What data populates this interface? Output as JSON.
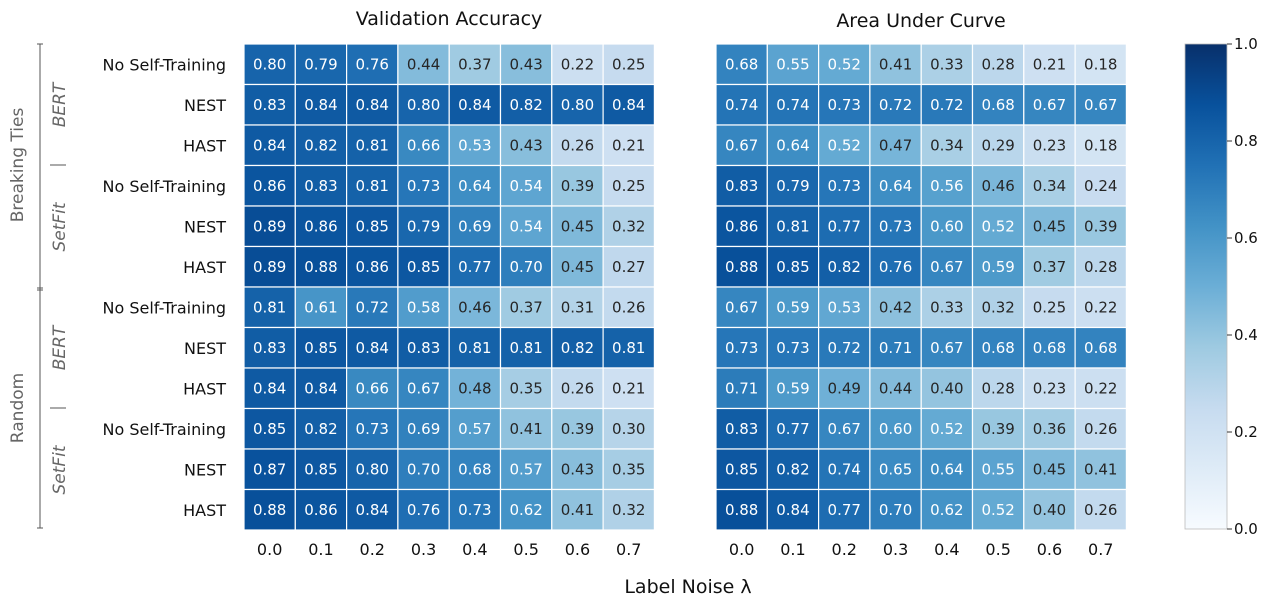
{
  "chart_data": [
    {
      "type": "heatmap",
      "title": "Validation Accuracy",
      "columns": [
        "0.0",
        "0.1",
        "0.2",
        "0.3",
        "0.4",
        "0.5",
        "0.6",
        "0.7"
      ],
      "rows": [
        "No Self-Training",
        "NEST",
        "HAST",
        "No Self-Training",
        "NEST",
        "HAST",
        "No Self-Training",
        "NEST",
        "HAST",
        "No Self-Training",
        "NEST",
        "HAST"
      ],
      "values": [
        [
          0.8,
          0.79,
          0.76,
          0.44,
          0.37,
          0.43,
          0.22,
          0.25
        ],
        [
          0.83,
          0.84,
          0.84,
          0.8,
          0.84,
          0.82,
          0.8,
          0.84
        ],
        [
          0.84,
          0.82,
          0.81,
          0.66,
          0.53,
          0.43,
          0.26,
          0.21
        ],
        [
          0.86,
          0.83,
          0.81,
          0.73,
          0.64,
          0.54,
          0.39,
          0.25
        ],
        [
          0.89,
          0.86,
          0.85,
          0.79,
          0.69,
          0.54,
          0.45,
          0.32
        ],
        [
          0.89,
          0.88,
          0.86,
          0.85,
          0.77,
          0.7,
          0.45,
          0.27
        ],
        [
          0.81,
          0.61,
          0.72,
          0.58,
          0.46,
          0.37,
          0.31,
          0.26
        ],
        [
          0.83,
          0.85,
          0.84,
          0.83,
          0.81,
          0.81,
          0.82,
          0.81
        ],
        [
          0.84,
          0.84,
          0.66,
          0.67,
          0.48,
          0.35,
          0.26,
          0.21
        ],
        [
          0.85,
          0.82,
          0.73,
          0.69,
          0.57,
          0.41,
          0.39,
          0.3
        ],
        [
          0.87,
          0.85,
          0.8,
          0.7,
          0.68,
          0.57,
          0.43,
          0.35
        ],
        [
          0.88,
          0.86,
          0.84,
          0.76,
          0.73,
          0.62,
          0.41,
          0.32
        ]
      ]
    },
    {
      "type": "heatmap",
      "title": "Area Under Curve",
      "columns": [
        "0.0",
        "0.1",
        "0.2",
        "0.3",
        "0.4",
        "0.5",
        "0.6",
        "0.7"
      ],
      "rows": [
        "No Self-Training",
        "NEST",
        "HAST",
        "No Self-Training",
        "NEST",
        "HAST",
        "No Self-Training",
        "NEST",
        "HAST",
        "No Self-Training",
        "NEST",
        "HAST"
      ],
      "values": [
        [
          0.68,
          0.55,
          0.52,
          0.41,
          0.33,
          0.28,
          0.21,
          0.18
        ],
        [
          0.74,
          0.74,
          0.73,
          0.72,
          0.72,
          0.68,
          0.67,
          0.67
        ],
        [
          0.67,
          0.64,
          0.52,
          0.47,
          0.34,
          0.29,
          0.23,
          0.18
        ],
        [
          0.83,
          0.79,
          0.73,
          0.64,
          0.56,
          0.46,
          0.34,
          0.24
        ],
        [
          0.86,
          0.81,
          0.77,
          0.73,
          0.6,
          0.52,
          0.45,
          0.39
        ],
        [
          0.88,
          0.85,
          0.82,
          0.76,
          0.67,
          0.59,
          0.37,
          0.28
        ],
        [
          0.67,
          0.59,
          0.53,
          0.42,
          0.33,
          0.32,
          0.25,
          0.22
        ],
        [
          0.73,
          0.73,
          0.72,
          0.71,
          0.67,
          0.68,
          0.68,
          0.68
        ],
        [
          0.71,
          0.59,
          0.49,
          0.44,
          0.4,
          0.28,
          0.23,
          0.22
        ],
        [
          0.83,
          0.77,
          0.67,
          0.6,
          0.52,
          0.39,
          0.36,
          0.26
        ],
        [
          0.85,
          0.82,
          0.74,
          0.65,
          0.64,
          0.55,
          0.45,
          0.41
        ],
        [
          0.88,
          0.84,
          0.77,
          0.7,
          0.62,
          0.52,
          0.4,
          0.26
        ]
      ]
    }
  ],
  "xlabel": "Label Noise λ",
  "groups": [
    {
      "label": "Breaking Ties",
      "models": [
        "BERT",
        "SetFit"
      ]
    },
    {
      "label": "Random",
      "models": [
        "BERT",
        "SetFit"
      ]
    }
  ],
  "colorbar": {
    "range": [
      0.0,
      1.0
    ],
    "ticks": [
      "0.0",
      "0.2",
      "0.4",
      "0.6",
      "0.8",
      "1.0"
    ],
    "colors": [
      "#f7fbff",
      "#deebf7",
      "#c6dbef",
      "#9ecae1",
      "#6baed6",
      "#4292c6",
      "#2171b5",
      "#08519c",
      "#08306b"
    ]
  }
}
